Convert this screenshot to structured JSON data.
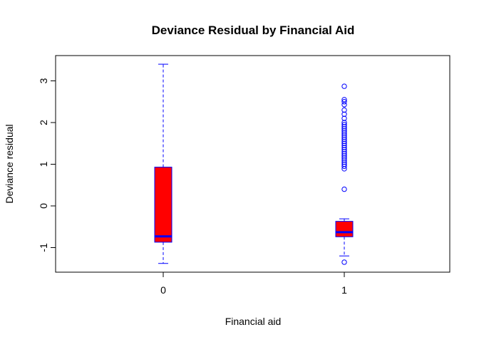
{
  "chart_data": {
    "type": "box",
    "title": "Deviance Residual by Financial Aid",
    "xlabel": "Financial aid",
    "ylabel": "Deviance residual",
    "categories": [
      "0",
      "1"
    ],
    "y_ticks": [
      "-1",
      "0",
      "1",
      "2",
      "3"
    ],
    "ylim": [
      -1.6,
      3.6
    ],
    "colors": {
      "box_fill": "#ff0000",
      "border": "#0000ff",
      "median": "#0000ff",
      "frame": "#000000"
    },
    "boxes": [
      {
        "category": "0",
        "whisker_low": -1.38,
        "q1": -0.87,
        "median": -0.73,
        "q3": 0.93,
        "whisker_high": 3.4,
        "outliers": []
      },
      {
        "category": "1",
        "whisker_low": -1.2,
        "q1": -0.74,
        "median": -0.63,
        "q3": -0.37,
        "whisker_high": -0.31,
        "outliers": [
          -1.35,
          0.4,
          0.89,
          0.95,
          1.0,
          1.05,
          1.1,
          1.15,
          1.2,
          1.25,
          1.3,
          1.35,
          1.4,
          1.45,
          1.5,
          1.55,
          1.6,
          1.65,
          1.7,
          1.75,
          1.8,
          1.85,
          1.9,
          1.95,
          2.0,
          2.1,
          2.2,
          2.3,
          2.43,
          2.5,
          2.55,
          2.87
        ]
      }
    ]
  }
}
